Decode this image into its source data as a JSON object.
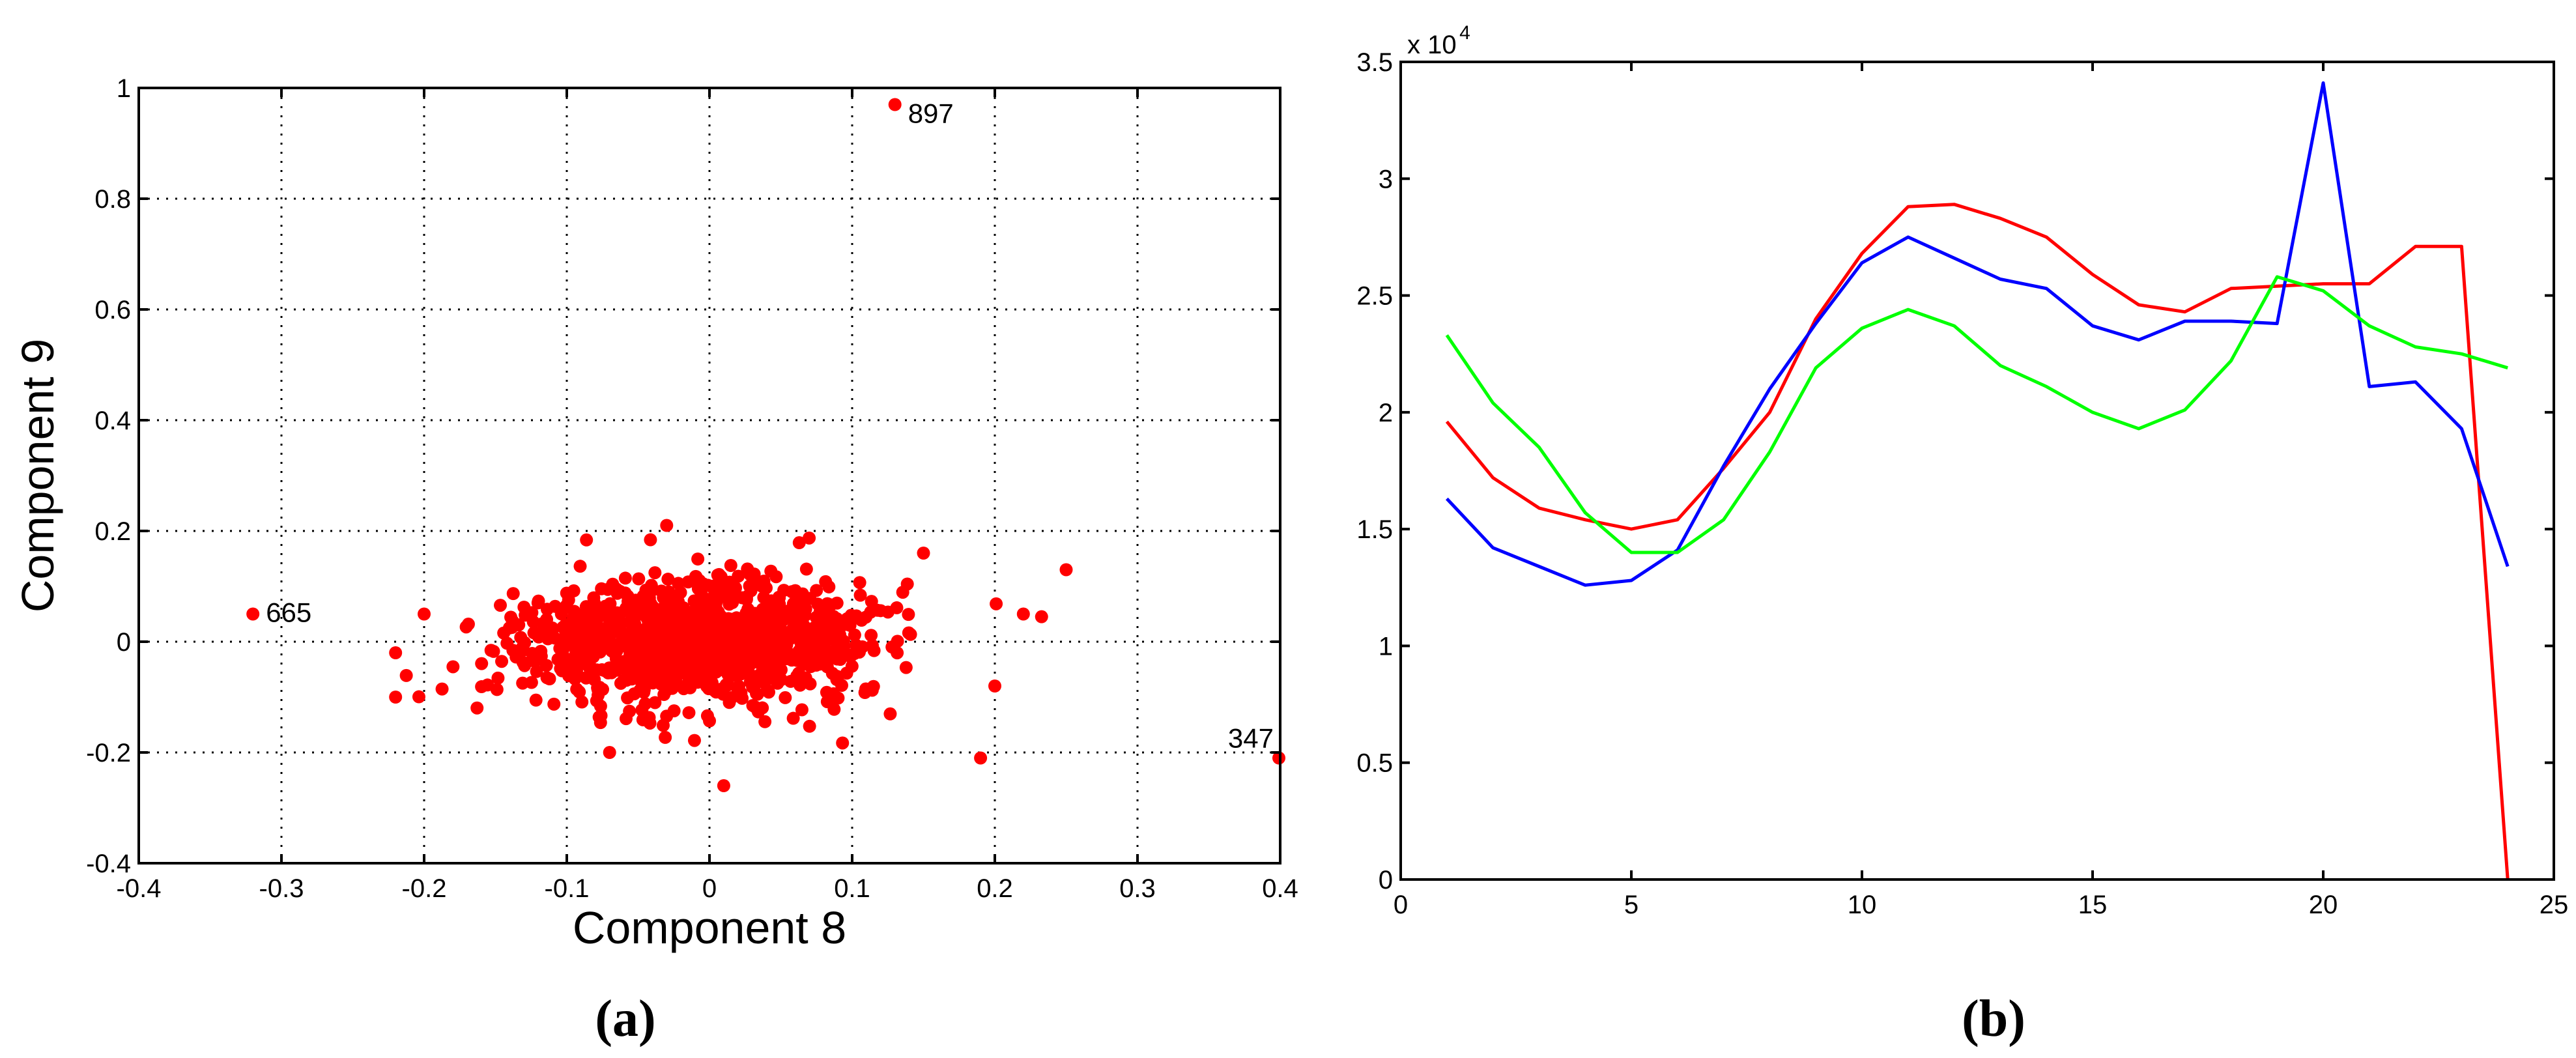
{
  "chart_data": [
    {
      "type": "scatter",
      "panel_label": "(a)",
      "xlabel": "Component 8",
      "ylabel": "Component 9",
      "xlim": [
        -0.4,
        0.4
      ],
      "ylim": [
        -0.4,
        1.0
      ],
      "xticks": [
        "-0.4",
        "-0.3",
        "-0.2",
        "-0.1",
        "0",
        "0.1",
        "0.2",
        "0.3",
        "0.4"
      ],
      "yticks": [
        "-0.4",
        "-0.2",
        "0",
        "0.2",
        "0.4",
        "0.6",
        "0.8",
        "1"
      ],
      "grid": true,
      "marker_color": "#ff0000",
      "annotated_points": [
        {
          "label": "897",
          "x": 0.13,
          "y": 0.97
        },
        {
          "label": "665",
          "x": -0.32,
          "y": 0.05
        },
        {
          "label": "347",
          "x": 0.4,
          "y": -0.21
        }
      ],
      "cluster": {
        "approx_points": 1200,
        "center": [
          -0.01,
          0.0
        ],
        "spread_x": 0.06,
        "spread_y": 0.055,
        "outliers": [
          {
            "x": 0.25,
            "y": 0.13
          },
          {
            "x": 0.22,
            "y": 0.05
          },
          {
            "x": 0.19,
            "y": -0.21
          },
          {
            "x": 0.01,
            "y": -0.26
          },
          {
            "x": -0.07,
            "y": -0.2
          },
          {
            "x": -0.22,
            "y": -0.1
          },
          {
            "x": -0.22,
            "y": -0.02
          },
          {
            "x": -0.2,
            "y": 0.05
          },
          {
            "x": -0.03,
            "y": 0.21
          },
          {
            "x": 0.2,
            "y": -0.08
          },
          {
            "x": 0.15,
            "y": 0.16
          }
        ]
      }
    },
    {
      "type": "line",
      "panel_label": "(b)",
      "xlabel": "",
      "ylabel": "",
      "xlim": [
        0,
        25
      ],
      "ylim": [
        0,
        35000
      ],
      "xticks": [
        "0",
        "5",
        "10",
        "15",
        "20",
        "25"
      ],
      "yticks": [
        "0",
        "0.5",
        "1",
        "1.5",
        "2",
        "2.5",
        "3",
        "3.5"
      ],
      "y_multiplier_base": "x 10",
      "y_multiplier_exp": "4",
      "grid": false,
      "x": [
        1,
        2,
        3,
        4,
        5,
        6,
        7,
        8,
        9,
        10,
        11,
        12,
        13,
        14,
        15,
        16,
        17,
        18,
        19,
        20,
        21,
        22,
        23,
        24
      ],
      "series": [
        {
          "color": "#ff0000",
          "values": [
            19600,
            17200,
            15900,
            15400,
            15000,
            15400,
            17600,
            20000,
            24000,
            26800,
            28800,
            28900,
            28300,
            27500,
            25900,
            24600,
            24300,
            25300,
            25400,
            25500,
            25500,
            27100,
            27100,
            0
          ]
        },
        {
          "color": "#0000ff",
          "values": [
            16300,
            14200,
            13400,
            12600,
            12800,
            14100,
            17700,
            21000,
            23800,
            26400,
            27500,
            26600,
            25700,
            25300,
            23700,
            23100,
            23900,
            23900,
            23800,
            34100,
            21100,
            21300,
            19300,
            13400
          ]
        },
        {
          "color": "#00ff00",
          "values": [
            23300,
            20400,
            18500,
            15700,
            14000,
            14000,
            15400,
            18300,
            21900,
            23600,
            24400,
            23700,
            22000,
            21100,
            20000,
            19300,
            20100,
            22200,
            25800,
            25200,
            23700,
            22800,
            22500,
            21900
          ]
        }
      ]
    }
  ]
}
